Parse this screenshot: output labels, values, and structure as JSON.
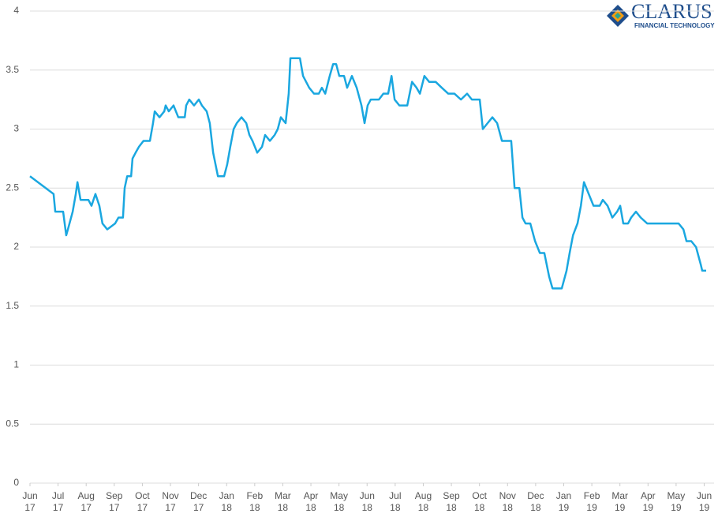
{
  "logo": {
    "name": "CLARUS",
    "tagline": "FINANCIAL TECHNOLOGY"
  },
  "chart_data": {
    "type": "line",
    "xlim": [
      0,
      24.07
    ],
    "ylim": [
      0,
      4
    ],
    "yticks": [
      0,
      0.5,
      1,
      1.5,
      2,
      2.5,
      3,
      3.5,
      4
    ],
    "xticks": [
      {
        "value": 0,
        "label": "Jun 17"
      },
      {
        "value": 1,
        "label": "Jul 17"
      },
      {
        "value": 2,
        "label": "Aug 17"
      },
      {
        "value": 3,
        "label": "Sep 17"
      },
      {
        "value": 4,
        "label": "Oct 17"
      },
      {
        "value": 5,
        "label": "Nov 17"
      },
      {
        "value": 6,
        "label": "Dec 17"
      },
      {
        "value": 7,
        "label": "Jan 18"
      },
      {
        "value": 8,
        "label": "Feb 18"
      },
      {
        "value": 9,
        "label": "Mar 18"
      },
      {
        "value": 10,
        "label": "Apr 18"
      },
      {
        "value": 11,
        "label": "May 18"
      },
      {
        "value": 12,
        "label": "Jun 18"
      },
      {
        "value": 13,
        "label": "Jul 18"
      },
      {
        "value": 14,
        "label": "Aug 18"
      },
      {
        "value": 15,
        "label": "Sep 18"
      },
      {
        "value": 16,
        "label": "Oct 18"
      },
      {
        "value": 17,
        "label": "Nov 18"
      },
      {
        "value": 18,
        "label": "Dec 18"
      },
      {
        "value": 19,
        "label": "Jan 19"
      },
      {
        "value": 20,
        "label": "Feb 19"
      },
      {
        "value": 21,
        "label": "Mar 19"
      },
      {
        "value": 22,
        "label": "Apr 19"
      },
      {
        "value": 23,
        "label": "May 19"
      },
      {
        "value": 24,
        "label": "Jun 19"
      }
    ],
    "grid": true,
    "series": [
      {
        "color": "#1aa7e0",
        "x": [
          0,
          0.84,
          0.9,
          1.04,
          1.18,
          1.29,
          1.35,
          1.52,
          1.63,
          1.69,
          1.8,
          2.08,
          2.19,
          2.33,
          2.47,
          2.58,
          2.75,
          3.03,
          3.15,
          3.31,
          3.37,
          3.46,
          3.6,
          3.65,
          3.76,
          3.88,
          4.04,
          4.27,
          4.38,
          4.44,
          4.61,
          4.78,
          4.83,
          4.94,
          5.11,
          5.28,
          5.51,
          5.56,
          5.67,
          5.84,
          6.01,
          6.12,
          6.29,
          6.4,
          6.52,
          6.69,
          6.91,
          7.02,
          7.13,
          7.25,
          7.36,
          7.53,
          7.7,
          7.81,
          7.92,
          8.09,
          8.26,
          8.37,
          8.54,
          8.71,
          8.82,
          8.93,
          9.1,
          9.21,
          9.27,
          9.44,
          9.61,
          9.72,
          9.83,
          9.94,
          10.11,
          10.28,
          10.39,
          10.51,
          10.67,
          10.79,
          10.9,
          11.01,
          11.18,
          11.29,
          11.46,
          11.63,
          11.8,
          11.91,
          12.02,
          12.13,
          12.42,
          12.58,
          12.75,
          12.87,
          12.98,
          13.15,
          13.43,
          13.6,
          13.76,
          13.88,
          14.04,
          14.21,
          14.44,
          14.66,
          14.89,
          15.11,
          15.34,
          15.56,
          15.73,
          16.01,
          16.12,
          16.29,
          16.46,
          16.63,
          16.8,
          16.97,
          17.13,
          17.25,
          17.42,
          17.53,
          17.64,
          17.81,
          17.98,
          18.15,
          18.31,
          18.48,
          18.6,
          18.76,
          18.93,
          19.1,
          19.21,
          19.33,
          19.49,
          19.61,
          19.72,
          19.89,
          20.06,
          20.28,
          20.39,
          20.56,
          20.73,
          20.9,
          21.01,
          21.12,
          21.29,
          21.4,
          21.57,
          21.74,
          21.97,
          22.19,
          22.42,
          22.58,
          22.81,
          23.09,
          23.26,
          23.37,
          23.54,
          23.71,
          23.88,
          23.93,
          24.07
        ],
        "values": [
          2.6,
          2.45,
          2.3,
          2.3,
          2.3,
          2.1,
          2.15,
          2.3,
          2.45,
          2.55,
          2.4,
          2.4,
          2.35,
          2.45,
          2.35,
          2.2,
          2.15,
          2.2,
          2.25,
          2.25,
          2.5,
          2.6,
          2.6,
          2.75,
          2.8,
          2.85,
          2.9,
          2.9,
          3.05,
          3.15,
          3.1,
          3.15,
          3.2,
          3.15,
          3.2,
          3.1,
          3.1,
          3.2,
          3.25,
          3.2,
          3.25,
          3.2,
          3.15,
          3.05,
          2.8,
          2.6,
          2.6,
          2.7,
          2.85,
          3.0,
          3.05,
          3.1,
          3.05,
          2.95,
          2.9,
          2.8,
          2.85,
          2.95,
          2.9,
          2.95,
          3.0,
          3.1,
          3.05,
          3.3,
          3.6,
          3.6,
          3.6,
          3.45,
          3.4,
          3.35,
          3.3,
          3.3,
          3.35,
          3.3,
          3.45,
          3.55,
          3.55,
          3.45,
          3.45,
          3.35,
          3.45,
          3.35,
          3.2,
          3.05,
          3.2,
          3.25,
          3.25,
          3.3,
          3.3,
          3.45,
          3.25,
          3.2,
          3.2,
          3.4,
          3.35,
          3.3,
          3.45,
          3.4,
          3.4,
          3.35,
          3.3,
          3.3,
          3.25,
          3.3,
          3.25,
          3.25,
          3.0,
          3.05,
          3.1,
          3.05,
          2.9,
          2.9,
          2.9,
          2.5,
          2.5,
          2.25,
          2.2,
          2.2,
          2.05,
          1.95,
          1.95,
          1.75,
          1.65,
          1.65,
          1.65,
          1.8,
          1.95,
          2.1,
          2.2,
          2.35,
          2.55,
          2.45,
          2.35,
          2.35,
          2.4,
          2.35,
          2.25,
          2.3,
          2.35,
          2.2,
          2.2,
          2.25,
          2.3,
          2.25,
          2.2,
          2.2,
          2.2,
          2.2,
          2.2,
          2.2,
          2.15,
          2.05,
          2.05,
          2.0,
          1.85,
          1.8,
          1.8
        ]
      }
    ]
  }
}
